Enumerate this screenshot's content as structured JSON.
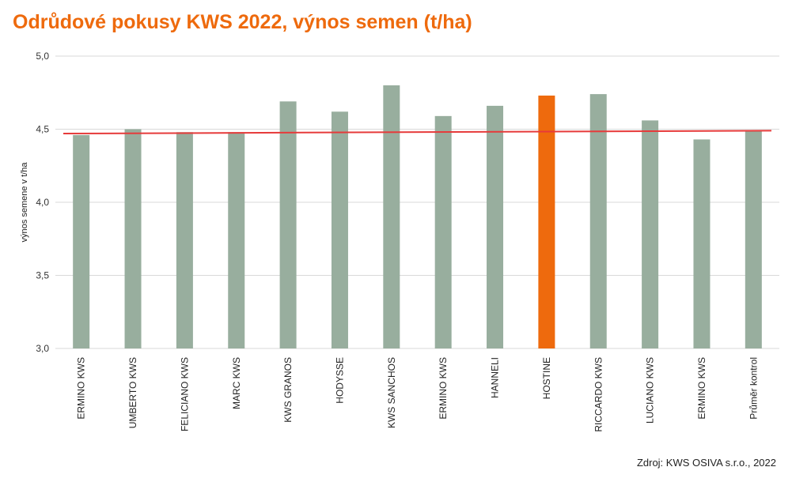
{
  "title": "Odrůdové pokusy KWS 2022, výnos semen (t/ha)",
  "source": "Zdroj: KWS OSIVA s.r.o., 2022",
  "colors": {
    "bar": "#98ae9e",
    "highlight": "#ee6a0d",
    "avg_line": "#e63a3a",
    "grid": "#d9d9d9"
  },
  "chart_data": {
    "type": "bar",
    "ylabel": "výnos semene v t/ha",
    "ylim": [
      3.0,
      5.0
    ],
    "yticks": [
      "3,0",
      "3,5",
      "4,0",
      "4,5",
      "5,0"
    ],
    "grid": true,
    "categories": [
      "ERMINO KWS",
      "UMBERTO KWS",
      "FELICIANO KWS",
      "MARC KWS",
      "KWS GRANOS",
      "HODYSSE",
      "KWS SANCHOS",
      "ERMINO KWS",
      "HANNELI",
      "HOSTINE",
      "RICCARDO KWS",
      "LUCIANO KWS",
      "ERMINO KWS",
      "Průměr kontrol"
    ],
    "values": [
      4.46,
      4.5,
      4.48,
      4.48,
      4.69,
      4.62,
      4.8,
      4.59,
      4.66,
      4.73,
      4.74,
      4.56,
      4.43,
      4.49
    ],
    "highlight": "HOSTINE",
    "reference_line": {
      "start": 4.47,
      "end": 4.49
    }
  }
}
